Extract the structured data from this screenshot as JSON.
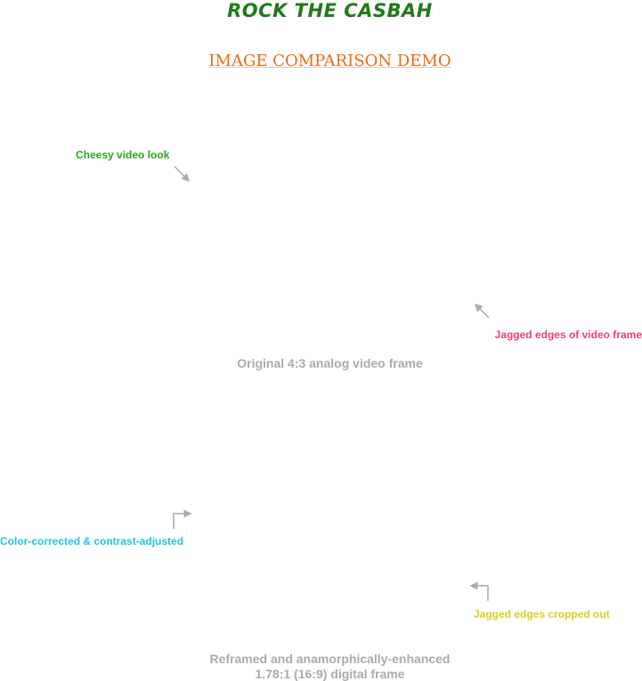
{
  "header": {
    "title": "ROCK THE CASBAH",
    "subtitle": "IMAGE COMPARISON DEMO"
  },
  "top_frame": {
    "annotations": [
      "Cheesy video look",
      "Jagged edges of video frame"
    ],
    "caption": "Original 4:3 analog video frame"
  },
  "bottom_frame": {
    "annotations": [
      "Color-corrected & contrast-adjusted",
      "Jagged edges cropped out"
    ],
    "caption_lines": [
      "Reframed and anamorphically-enhanced",
      "1.78:1 (16:9) digital frame"
    ]
  }
}
